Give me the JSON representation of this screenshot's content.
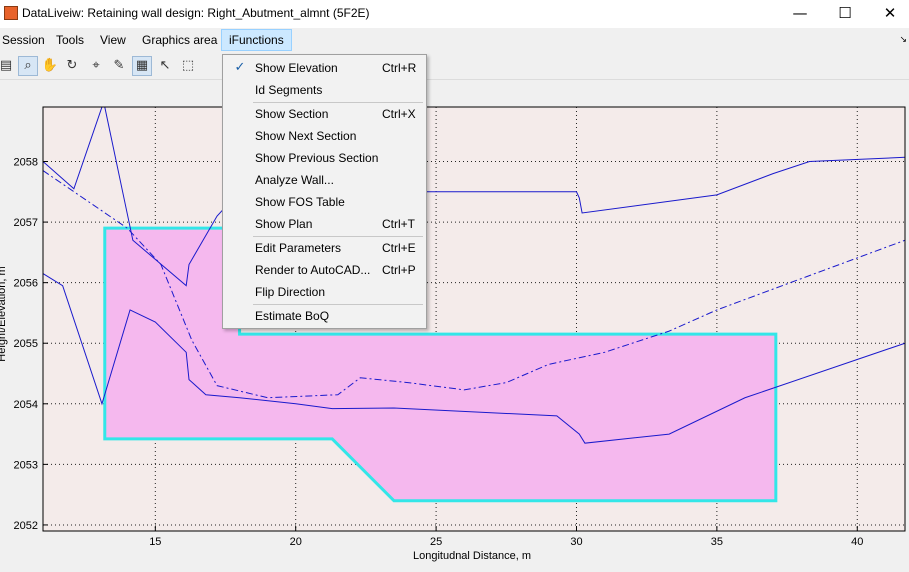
{
  "window": {
    "title": "DataLiveiw: Retaining wall design: Right_Abutment_almnt (5F2E)",
    "minimize_glyph": "—",
    "maximize_glyph": "☐",
    "close_glyph": "✕"
  },
  "menubar": {
    "items": [
      "Session",
      "Tools",
      "View",
      "Graphics area",
      "iFunctions"
    ],
    "active": "iFunctions",
    "corner_arrow": "↘"
  },
  "toolbar": {
    "icons": [
      "data-table-icon",
      "zoom-in-icon",
      "pan-hand-icon",
      "rotate-icon",
      "data-cursor-icon",
      "brush-icon",
      "grid-icon",
      "select-arrow-icon",
      "select-box-icon"
    ],
    "glyphs": [
      "▤",
      "⌕",
      "✋",
      "↻",
      "⌖",
      "✎",
      "▦",
      "↖",
      "⬚"
    ],
    "pressed": [
      "zoom-in-icon",
      "grid-icon"
    ]
  },
  "ifunctions_menu": {
    "check_glyph": "✓",
    "items": [
      {
        "label": "Show Elevation",
        "shortcut": "Ctrl+R",
        "checked": true
      },
      {
        "label": "Id Segments",
        "shortcut": ""
      },
      {
        "label": "Show Section",
        "shortcut": "Ctrl+X"
      },
      {
        "label": "Show Next Section",
        "shortcut": ""
      },
      {
        "label": "Show Previous Section",
        "shortcut": ""
      },
      {
        "label": "Analyze Wall...",
        "shortcut": ""
      },
      {
        "label": "Show FOS Table",
        "shortcut": ""
      },
      {
        "label": "Show Plan",
        "shortcut": "Ctrl+T"
      },
      {
        "label": "Edit Parameters",
        "shortcut": "Ctrl+E"
      },
      {
        "label": "Render to AutoCAD...",
        "shortcut": "Ctrl+P"
      },
      {
        "label": "Flip Direction",
        "shortcut": ""
      },
      {
        "label": "Estimate BoQ",
        "shortcut": ""
      }
    ]
  },
  "colors": {
    "plot_bg": "#f4ebea",
    "wall_fill": "#f5b8ee",
    "wall_outline": "#33e6e8",
    "line": "#1a1acc"
  },
  "chart_data": {
    "type": "line",
    "title": "",
    "xlabel": "Longitudnal Distance, m",
    "ylabel": "Height/Elevation, m",
    "xlim": [
      11,
      41.7
    ],
    "ylim": [
      2051.9,
      2058.9
    ],
    "xticks": [
      15,
      20,
      25,
      30,
      35,
      40
    ],
    "yticks": [
      2052,
      2053,
      2054,
      2055,
      2056,
      2057,
      2058
    ],
    "grid": true,
    "series": [
      {
        "style": "solid",
        "points": [
          [
            11,
            2058.0
          ],
          [
            12.1,
            2057.55
          ],
          [
            13.1,
            2058.9
          ],
          [
            13.2,
            2058.9
          ],
          [
            14.2,
            2056.7
          ],
          [
            16.1,
            2055.95
          ],
          [
            16.2,
            2056.3
          ],
          [
            17.2,
            2057.1
          ],
          [
            18,
            2057.5
          ],
          [
            30,
            2057.5
          ],
          [
            30.1,
            2057.4
          ],
          [
            30.2,
            2057.15
          ],
          [
            35,
            2057.45
          ],
          [
            37,
            2057.8
          ],
          [
            38.3,
            2058.0
          ],
          [
            41.7,
            2058.07
          ]
        ]
      },
      {
        "style": "solid",
        "points": [
          [
            11,
            2056.15
          ],
          [
            11.7,
            2055.95
          ],
          [
            13.1,
            2054.0
          ],
          [
            14.1,
            2055.55
          ],
          [
            15,
            2055.35
          ],
          [
            16.1,
            2054.85
          ],
          [
            16.2,
            2054.4
          ],
          [
            16.8,
            2054.15
          ],
          [
            18,
            2054.1
          ],
          [
            20,
            2054.0
          ],
          [
            21.3,
            2053.92
          ],
          [
            23.5,
            2053.93
          ],
          [
            29.3,
            2053.8
          ],
          [
            30.1,
            2053.5
          ],
          [
            30.3,
            2053.35
          ],
          [
            33.3,
            2053.5
          ],
          [
            36,
            2054.1
          ],
          [
            41.7,
            2055.0
          ]
        ]
      },
      {
        "style": "dashdot",
        "points": [
          [
            11,
            2057.85
          ],
          [
            14,
            2056.9
          ],
          [
            15.2,
            2056.3
          ],
          [
            16.3,
            2055.05
          ],
          [
            17.2,
            2054.3
          ],
          [
            19,
            2054.1
          ],
          [
            21.5,
            2054.15
          ],
          [
            22.3,
            2054.43
          ],
          [
            24,
            2054.35
          ],
          [
            26,
            2054.23
          ],
          [
            27.5,
            2054.35
          ],
          [
            29,
            2054.65
          ],
          [
            31,
            2054.85
          ],
          [
            33.3,
            2055.2
          ],
          [
            35,
            2055.55
          ],
          [
            38.2,
            2056.1
          ],
          [
            41.7,
            2056.7
          ]
        ]
      }
    ],
    "wall_polygon": [
      [
        13.2,
        2056.9
      ],
      [
        17.4,
        2056.9
      ],
      [
        18,
        2056.4
      ],
      [
        18,
        2055.15
      ],
      [
        37.1,
        2055.15
      ],
      [
        37.1,
        2052.4
      ],
      [
        23.5,
        2052.4
      ],
      [
        21.3,
        2053.42
      ],
      [
        13.2,
        2053.42
      ]
    ]
  }
}
